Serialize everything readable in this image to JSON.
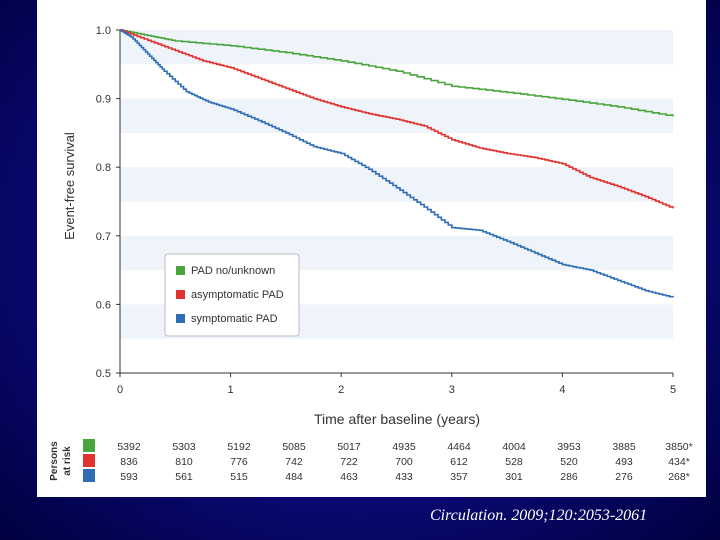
{
  "citation": "Circulation. 2009;120:2053-2061",
  "chart_data": {
    "type": "line",
    "title": "",
    "xlabel": "Time after baseline (years)",
    "ylabel": "Event-free survival",
    "xlim": [
      0,
      5
    ],
    "ylim": [
      0.5,
      1.0
    ],
    "x_ticks": [
      "0",
      "1",
      "2",
      "3",
      "4",
      "5"
    ],
    "y_ticks": [
      "0.5",
      "0.6",
      "0.7",
      "0.8",
      "0.9",
      "1.0"
    ],
    "grid": "alternating horizontal bands",
    "legend_position": "center-left",
    "series": [
      {
        "name": "PAD no/unknown",
        "color": "#4aa63c",
        "x": [
          0,
          0.25,
          0.5,
          1.0,
          1.5,
          2.0,
          2.5,
          3.0,
          3.5,
          4.0,
          4.5,
          5.0
        ],
        "y": [
          1.0,
          0.992,
          0.984,
          0.977,
          0.967,
          0.955,
          0.94,
          0.918,
          0.909,
          0.899,
          0.888,
          0.874
        ]
      },
      {
        "name": "asymptomatic PAD",
        "color": "#e0322e",
        "x": [
          0,
          0.25,
          0.5,
          0.75,
          1.0,
          1.25,
          1.5,
          1.75,
          2.0,
          2.25,
          2.5,
          2.75,
          3.0,
          3.25,
          3.5,
          3.75,
          4.0,
          4.25,
          4.5,
          4.75,
          5.0
        ],
        "y": [
          1.0,
          0.985,
          0.97,
          0.955,
          0.945,
          0.93,
          0.915,
          0.9,
          0.888,
          0.878,
          0.87,
          0.86,
          0.84,
          0.828,
          0.82,
          0.814,
          0.805,
          0.785,
          0.772,
          0.757,
          0.74
        ]
      },
      {
        "name": "symptomatic PAD",
        "color": "#2f6eb5",
        "x": [
          0,
          0.1,
          0.25,
          0.4,
          0.6,
          0.8,
          1.0,
          1.25,
          1.5,
          1.75,
          2.0,
          2.25,
          2.5,
          2.75,
          3.0,
          3.25,
          3.5,
          3.75,
          4.0,
          4.25,
          4.5,
          4.75,
          5.0
        ],
        "y": [
          1.0,
          0.99,
          0.965,
          0.94,
          0.91,
          0.895,
          0.885,
          0.868,
          0.85,
          0.83,
          0.82,
          0.797,
          0.77,
          0.742,
          0.712,
          0.708,
          0.692,
          0.675,
          0.658,
          0.65,
          0.635,
          0.62,
          0.61
        ]
      }
    ]
  },
  "risk_table": {
    "title_line1": "Persons",
    "title_line2": "at risk",
    "rows": [
      {
        "color": "#4aa63c",
        "values": [
          "5392",
          "5303",
          "5192",
          "5085",
          "5017",
          "4935",
          "4464",
          "4004",
          "3953",
          "3885",
          "3850*"
        ]
      },
      {
        "color": "#e0322e",
        "values": [
          "836",
          "810",
          "776",
          "742",
          "722",
          "700",
          "612",
          "528",
          "520",
          "493",
          "434*"
        ]
      },
      {
        "color": "#2f6eb5",
        "values": [
          "593",
          "561",
          "515",
          "484",
          "463",
          "433",
          "357",
          "301",
          "286",
          "276",
          "268*"
        ]
      }
    ]
  }
}
